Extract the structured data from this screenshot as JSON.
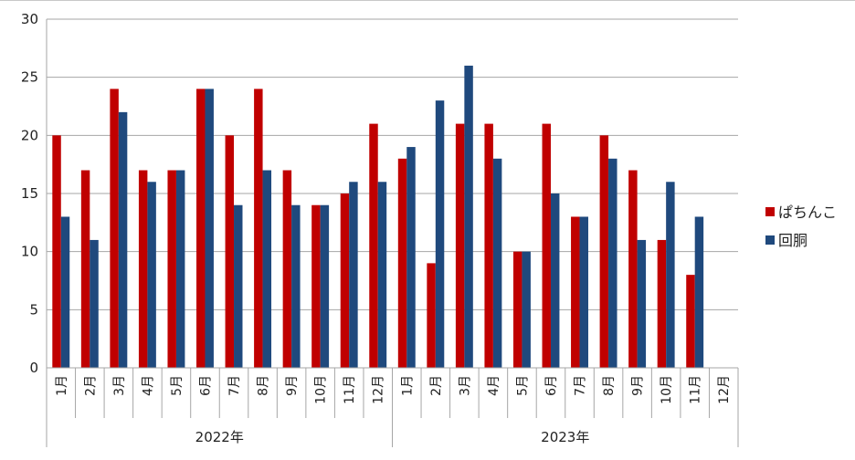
{
  "chart_data": {
    "type": "bar",
    "title": "",
    "xlabel": "",
    "ylabel": "",
    "ylim": [
      0,
      30
    ],
    "yticks": [
      0,
      5,
      10,
      15,
      20,
      25,
      30
    ],
    "grid": true,
    "legend_position": "right",
    "groups": [
      {
        "label": "2022年",
        "categories": [
          "1月",
          "2月",
          "3月",
          "4月",
          "5月",
          "6月",
          "7月",
          "8月",
          "9月",
          "10月",
          "11月",
          "12月"
        ]
      },
      {
        "label": "2023年",
        "categories": [
          "1月",
          "2月",
          "3月",
          "4月",
          "5月",
          "6月",
          "7月",
          "8月",
          "9月",
          "10月",
          "11月",
          "12月"
        ]
      }
    ],
    "series": [
      {
        "name": "ぱちんこ",
        "color": "#c00000",
        "values": [
          20,
          17,
          24,
          17,
          17,
          24,
          20,
          24,
          17,
          14,
          15,
          21,
          18,
          9,
          21,
          21,
          10,
          21,
          13,
          20,
          17,
          11,
          8,
          null
        ]
      },
      {
        "name": "回胴",
        "color": "#1f497d",
        "values": [
          13,
          11,
          22,
          16,
          17,
          24,
          14,
          17,
          14,
          14,
          16,
          16,
          19,
          23,
          26,
          18,
          10,
          15,
          13,
          18,
          11,
          16,
          13,
          null
        ]
      }
    ]
  }
}
